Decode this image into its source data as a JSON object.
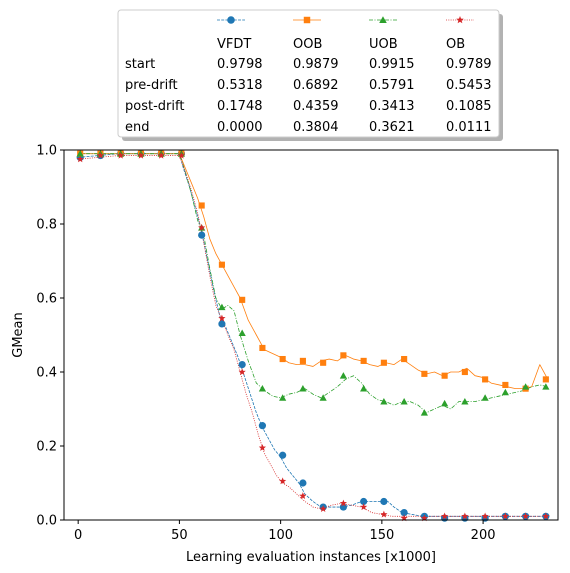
{
  "chart_data": {
    "type": "line",
    "xlabel": "Learning evaluation instances [x1000]",
    "ylabel": "GMean",
    "xlim": [
      -7,
      237
    ],
    "ylim": [
      0,
      1
    ],
    "xticks": [
      0,
      50,
      100,
      150,
      200
    ],
    "xtick_labels": [
      "0",
      "50",
      "100",
      "150",
      "200"
    ],
    "yticks": [
      0,
      0.2,
      0.4,
      0.6,
      0.8,
      1.0
    ],
    "ytick_labels": [
      "0.0",
      "0.2",
      "0.4",
      "0.6",
      "0.8",
      "1.0"
    ],
    "grid": false,
    "legend": {
      "placement": "top-center, above the axes",
      "row_labels": [
        "start",
        "pre-drift",
        "post-drift",
        "end"
      ],
      "series_names": [
        "VFDT",
        "OOB",
        "UOB",
        "OB"
      ],
      "table": [
        [
          "0.9798",
          "0.9879",
          "0.9915",
          "0.9789"
        ],
        [
          "0.5318",
          "0.6892",
          "0.5791",
          "0.5453"
        ],
        [
          "0.1748",
          "0.4359",
          "0.3413",
          "0.1085"
        ],
        [
          "0.0000",
          "0.3804",
          "0.3621",
          "0.0111"
        ]
      ]
    },
    "series": [
      {
        "name": "VFDT",
        "color": "#1f77b4",
        "marker": "circle",
        "linestyle": "dashed",
        "line_x": [
          0,
          10,
          20,
          30,
          40,
          50,
          52,
          55,
          58,
          61,
          64,
          67,
          70,
          73,
          76,
          79,
          82,
          85,
          88,
          91,
          94,
          97,
          100,
          103,
          106,
          109,
          112,
          116,
          120,
          125,
          130,
          135,
          140,
          145,
          150,
          153,
          156,
          160,
          165,
          170,
          175,
          180,
          190,
          200,
          210,
          220,
          230
        ],
        "line_y": [
          0.98,
          0.985,
          0.99,
          0.99,
          0.99,
          0.99,
          0.95,
          0.9,
          0.84,
          0.78,
          0.7,
          0.62,
          0.55,
          0.52,
          0.48,
          0.44,
          0.39,
          0.34,
          0.29,
          0.25,
          0.22,
          0.19,
          0.17,
          0.14,
          0.12,
          0.1,
          0.07,
          0.05,
          0.035,
          0.035,
          0.035,
          0.04,
          0.05,
          0.05,
          0.05,
          0.05,
          0.035,
          0.02,
          0.015,
          0.01,
          0.01,
          0.01,
          0.01,
          0.01,
          0.01,
          0.01,
          0.01
        ],
        "markers_x": [
          1,
          11,
          21,
          31,
          41,
          51,
          61,
          71,
          81,
          91,
          101,
          111,
          121,
          131,
          141,
          151,
          161,
          171,
          181,
          191,
          201,
          211,
          221,
          231
        ],
        "markers_y": [
          0.98,
          0.985,
          0.99,
          0.99,
          0.99,
          0.99,
          0.77,
          0.53,
          0.42,
          0.255,
          0.175,
          0.1,
          0.035,
          0.035,
          0.05,
          0.05,
          0.02,
          0.01,
          0.005,
          0.005,
          0.005,
          0.01,
          0.01,
          0.01
        ]
      },
      {
        "name": "OOB",
        "color": "#ff7f0e",
        "marker": "square",
        "linestyle": "solid",
        "line_x": [
          0,
          10,
          20,
          30,
          40,
          50,
          53,
          56,
          59,
          62,
          65,
          68,
          71,
          74,
          77,
          80,
          84,
          88,
          92,
          96,
          100,
          104,
          108,
          112,
          116,
          120,
          124,
          128,
          132,
          136,
          140,
          144,
          148,
          152,
          156,
          160,
          164,
          168,
          172,
          176,
          180,
          184,
          188,
          192,
          196,
          200,
          204,
          208,
          212,
          216,
          220,
          224,
          228,
          232
        ],
        "line_y": [
          0.99,
          0.99,
          0.99,
          0.99,
          0.99,
          0.99,
          0.95,
          0.91,
          0.87,
          0.82,
          0.76,
          0.72,
          0.69,
          0.66,
          0.63,
          0.6,
          0.54,
          0.5,
          0.46,
          0.45,
          0.44,
          0.425,
          0.42,
          0.42,
          0.415,
          0.43,
          0.435,
          0.43,
          0.445,
          0.435,
          0.43,
          0.42,
          0.415,
          0.425,
          0.42,
          0.435,
          0.42,
          0.405,
          0.395,
          0.4,
          0.39,
          0.4,
          0.4,
          0.41,
          0.39,
          0.385,
          0.37,
          0.365,
          0.36,
          0.355,
          0.355,
          0.36,
          0.42,
          0.38
        ],
        "markers_x": [
          1,
          11,
          21,
          31,
          41,
          51,
          61,
          71,
          81,
          91,
          101,
          111,
          121,
          131,
          141,
          151,
          161,
          171,
          181,
          191,
          201,
          211,
          221,
          231
        ],
        "markers_y": [
          0.99,
          0.99,
          0.99,
          0.99,
          0.99,
          0.99,
          0.85,
          0.69,
          0.595,
          0.465,
          0.435,
          0.43,
          0.425,
          0.445,
          0.43,
          0.425,
          0.435,
          0.395,
          0.39,
          0.4,
          0.38,
          0.365,
          0.355,
          0.38
        ]
      },
      {
        "name": "UOB",
        "color": "#2ca02c",
        "marker": "triangle",
        "linestyle": "dashdot",
        "line_x": [
          0,
          10,
          20,
          30,
          40,
          50,
          53,
          56,
          59,
          62,
          65,
          68,
          71,
          74,
          77,
          80,
          84,
          88,
          92,
          96,
          100,
          104,
          108,
          112,
          116,
          120,
          124,
          128,
          132,
          136,
          140,
          144,
          148,
          152,
          156,
          160,
          164,
          168,
          172,
          176,
          180,
          184,
          188,
          192,
          196,
          200,
          204,
          208,
          212,
          216,
          220,
          224,
          228,
          232
        ],
        "line_y": [
          0.99,
          0.99,
          0.99,
          0.99,
          0.99,
          0.99,
          0.94,
          0.88,
          0.81,
          0.77,
          0.68,
          0.6,
          0.57,
          0.58,
          0.565,
          0.5,
          0.43,
          0.37,
          0.35,
          0.335,
          0.33,
          0.34,
          0.345,
          0.355,
          0.34,
          0.33,
          0.345,
          0.36,
          0.38,
          0.39,
          0.37,
          0.34,
          0.325,
          0.32,
          0.31,
          0.32,
          0.32,
          0.31,
          0.29,
          0.3,
          0.31,
          0.3,
          0.32,
          0.32,
          0.32,
          0.325,
          0.33,
          0.335,
          0.34,
          0.345,
          0.35,
          0.36,
          0.365,
          0.36
        ],
        "markers_x": [
          1,
          11,
          21,
          31,
          41,
          51,
          61,
          71,
          81,
          91,
          101,
          111,
          121,
          131,
          141,
          151,
          161,
          171,
          181,
          191,
          201,
          211,
          221,
          231
        ],
        "markers_y": [
          0.99,
          0.99,
          0.99,
          0.99,
          0.99,
          0.99,
          0.79,
          0.575,
          0.505,
          0.355,
          0.33,
          0.355,
          0.33,
          0.39,
          0.355,
          0.32,
          0.32,
          0.29,
          0.315,
          0.32,
          0.33,
          0.345,
          0.36,
          0.36
        ]
      },
      {
        "name": "OB",
        "color": "#d62728",
        "marker": "star",
        "linestyle": "dotted",
        "line_x": [
          0,
          10,
          20,
          30,
          40,
          50,
          53,
          56,
          59,
          62,
          65,
          68,
          71,
          74,
          77,
          80,
          83,
          86,
          89,
          92,
          95,
          98,
          101,
          104,
          108,
          112,
          116,
          120,
          125,
          130,
          135,
          140,
          145,
          150,
          155,
          160,
          170,
          180,
          190,
          200,
          210,
          220,
          230
        ],
        "line_y": [
          0.975,
          0.98,
          0.985,
          0.985,
          0.985,
          0.985,
          0.94,
          0.89,
          0.83,
          0.75,
          0.66,
          0.58,
          0.54,
          0.5,
          0.46,
          0.4,
          0.34,
          0.29,
          0.23,
          0.18,
          0.15,
          0.12,
          0.1,
          0.09,
          0.07,
          0.05,
          0.035,
          0.03,
          0.04,
          0.045,
          0.04,
          0.035,
          0.02,
          0.015,
          0.01,
          0.01,
          0.01,
          0.01,
          0.01,
          0.01,
          0.01,
          0.01,
          0.01
        ],
        "markers_x": [
          1,
          11,
          21,
          31,
          41,
          51,
          61,
          71,
          81,
          91,
          101,
          111,
          121,
          131,
          141,
          151,
          161,
          171,
          181,
          191,
          201,
          211,
          221,
          231
        ],
        "markers_y": [
          0.975,
          0.985,
          0.985,
          0.985,
          0.985,
          0.985,
          0.79,
          0.545,
          0.4,
          0.195,
          0.105,
          0.065,
          0.03,
          0.045,
          0.035,
          0.015,
          0.005,
          0.005,
          0.01,
          0.01,
          0.01,
          0.01,
          0.01,
          0.01
        ]
      }
    ]
  }
}
